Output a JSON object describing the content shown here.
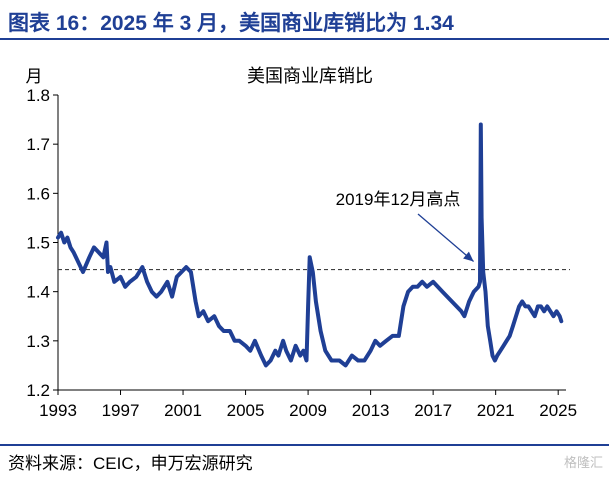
{
  "figure_title": "图表 16：2025 年 3 月，美国商业库销比为 1.34",
  "source_text": "资料来源：CEIC，申万宏源研究",
  "watermark_text": "格隆汇",
  "colors": {
    "title": "#1F3F95",
    "series": "#1F3F95",
    "reference_line": "#404040"
  },
  "chart_data": {
    "type": "line",
    "title": "美国商业库销比",
    "ylabel": "月",
    "xlabel": "",
    "ylim": [
      1.2,
      1.8
    ],
    "xlim": [
      1993,
      2025.5
    ],
    "x_ticks": [
      "1993",
      "1997",
      "2001",
      "2005",
      "2009",
      "2013",
      "2017",
      "2021",
      "2025"
    ],
    "y_ticks": [
      "1.2",
      "1.3",
      "1.4",
      "1.5",
      "1.6",
      "1.7",
      "1.8"
    ],
    "grid": false,
    "reference_line": {
      "y": 1.445,
      "style": "dashed"
    },
    "annotation": {
      "text": "2019年12月高点",
      "x": 2020.1,
      "y": 1.445
    },
    "series": [
      {
        "x": [
          1993.0,
          1993.2,
          1993.4,
          1993.6,
          1993.8,
          1994.0,
          1994.3,
          1994.6,
          1995.0,
          1995.3,
          1995.6,
          1995.9,
          1996.1,
          1996.2,
          1996.35,
          1996.6,
          1997.0,
          1997.3,
          1997.6,
          1998.0,
          1998.4,
          1998.7,
          1999.0,
          1999.3,
          1999.6,
          2000.0,
          2000.3,
          2000.6,
          2000.9,
          2001.2,
          2001.5,
          2001.8,
          2002.0,
          2002.3,
          2002.6,
          2003.0,
          2003.3,
          2003.6,
          2004.0,
          2004.3,
          2004.6,
          2005.0,
          2005.3,
          2005.6,
          2006.0,
          2006.3,
          2006.6,
          2006.9,
          2007.1,
          2007.4,
          2007.6,
          2007.9,
          2008.2,
          2008.5,
          2008.7,
          2008.9,
          2009.0,
          2009.1,
          2009.3,
          2009.5,
          2009.8,
          2010.1,
          2010.5,
          2011.0,
          2011.4,
          2011.8,
          2012.2,
          2012.6,
          2013.0,
          2013.3,
          2013.6,
          2014.0,
          2014.4,
          2014.8,
          2015.1,
          2015.4,
          2015.7,
          2016.0,
          2016.3,
          2016.6,
          2017.0,
          2017.3,
          2017.6,
          2017.9,
          2018.2,
          2018.5,
          2018.8,
          2019.0,
          2019.3,
          2019.6,
          2019.9,
          2020.0,
          2020.05,
          2020.1,
          2020.2,
          2020.35,
          2020.5,
          2020.65,
          2020.8,
          2020.95,
          2021.1,
          2021.3,
          2021.5,
          2021.7,
          2021.9,
          2022.1,
          2022.3,
          2022.5,
          2022.7,
          2022.9,
          2023.1,
          2023.3,
          2023.5,
          2023.7,
          2023.9,
          2024.1,
          2024.3,
          2024.5,
          2024.7,
          2024.9,
          2025.1,
          2025.2
        ],
        "y": [
          1.51,
          1.52,
          1.5,
          1.51,
          1.49,
          1.48,
          1.46,
          1.44,
          1.47,
          1.49,
          1.48,
          1.47,
          1.5,
          1.44,
          1.45,
          1.42,
          1.43,
          1.41,
          1.42,
          1.43,
          1.45,
          1.42,
          1.4,
          1.39,
          1.4,
          1.42,
          1.39,
          1.43,
          1.44,
          1.45,
          1.44,
          1.38,
          1.35,
          1.36,
          1.34,
          1.35,
          1.33,
          1.32,
          1.32,
          1.3,
          1.3,
          1.29,
          1.28,
          1.3,
          1.27,
          1.25,
          1.26,
          1.28,
          1.27,
          1.3,
          1.28,
          1.26,
          1.29,
          1.27,
          1.28,
          1.26,
          1.37,
          1.47,
          1.44,
          1.38,
          1.32,
          1.28,
          1.26,
          1.26,
          1.25,
          1.27,
          1.26,
          1.26,
          1.28,
          1.3,
          1.29,
          1.3,
          1.31,
          1.31,
          1.37,
          1.4,
          1.41,
          1.41,
          1.42,
          1.41,
          1.42,
          1.41,
          1.4,
          1.39,
          1.38,
          1.37,
          1.36,
          1.35,
          1.38,
          1.4,
          1.41,
          1.42,
          1.74,
          1.55,
          1.44,
          1.4,
          1.33,
          1.3,
          1.27,
          1.26,
          1.27,
          1.28,
          1.29,
          1.3,
          1.31,
          1.33,
          1.35,
          1.37,
          1.38,
          1.37,
          1.37,
          1.36,
          1.35,
          1.37,
          1.37,
          1.36,
          1.37,
          1.36,
          1.35,
          1.36,
          1.35,
          1.34
        ]
      }
    ]
  }
}
